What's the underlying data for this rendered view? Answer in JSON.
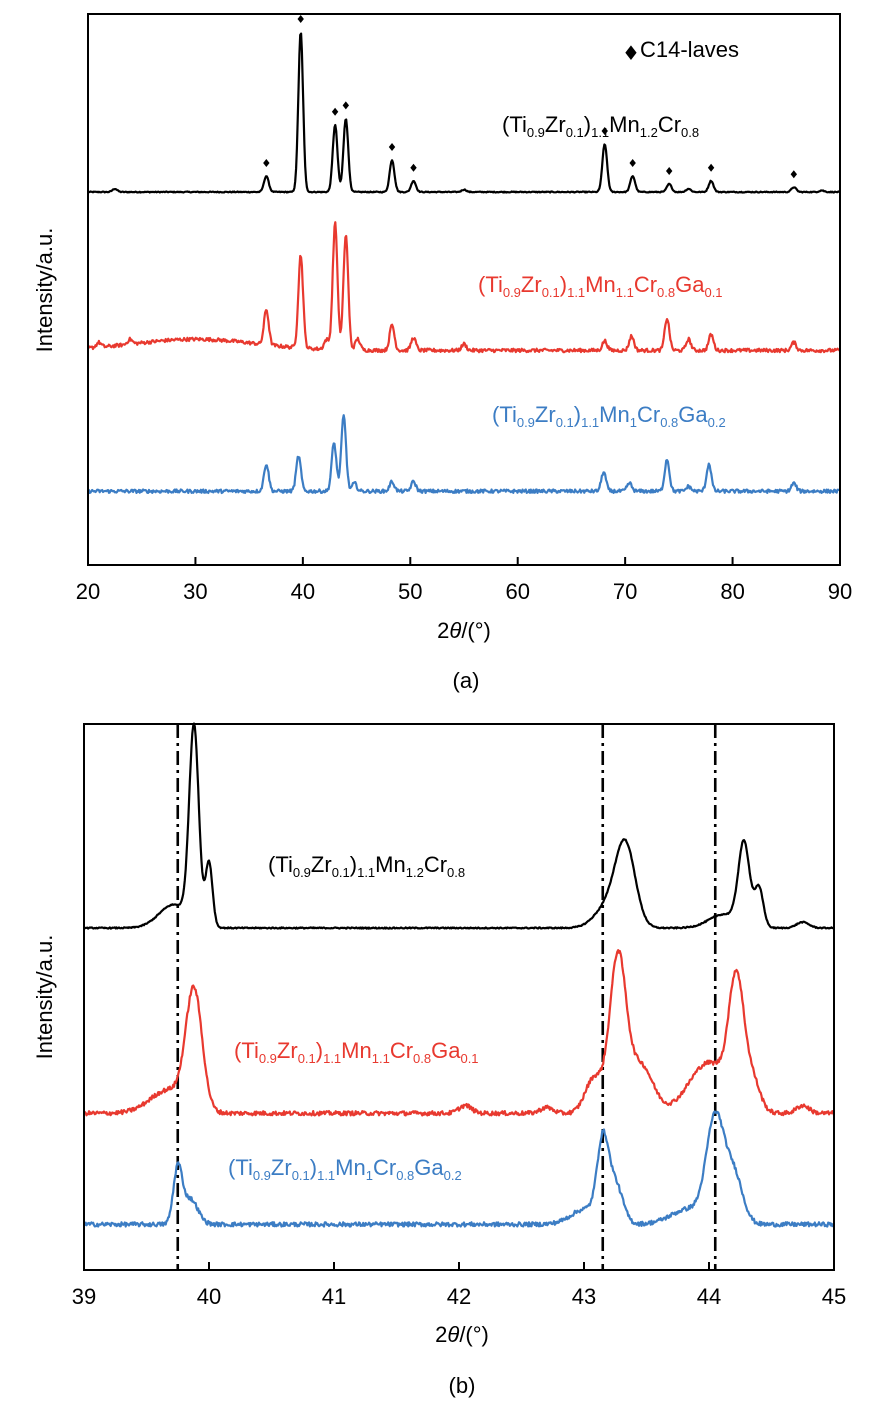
{
  "chart_data": [
    {
      "panel": "a",
      "type": "line",
      "caption": "(a)",
      "xlabel_italic": "θ",
      "xlabel_prefix": "2",
      "xlabel_suffix": "/(°)",
      "ylabel": "Intensity/a.u.",
      "xlim": [
        20,
        90
      ],
      "xticks": [
        "20",
        "30",
        "40",
        "50",
        "60",
        "70",
        "80",
        "90"
      ],
      "legend": {
        "marker": "♦",
        "text": "C14-laves",
        "position": "top-right"
      },
      "marker_peaks": [
        36.6,
        39.8,
        43.0,
        44.0,
        48.3,
        50.3,
        68.1,
        70.7,
        74.1,
        78.0,
        85.7
      ],
      "series": [
        {
          "name": "(Ti0.9Zr0.1)1.1Mn1.2Cr0.8",
          "label": [
            {
              "t": "(Ti",
              "s": "n"
            },
            {
              "t": "0.9",
              "s": "sub"
            },
            {
              "t": "Zr",
              "s": "n"
            },
            {
              "t": "0.1",
              "s": "sub"
            },
            {
              "t": ")",
              "s": "n"
            },
            {
              "t": "1.1",
              "s": "sub"
            },
            {
              "t": "Mn",
              "s": "n"
            },
            {
              "t": "1.2",
              "s": "sub"
            },
            {
              "t": "Cr",
              "s": "n"
            },
            {
              "t": "0.8",
              "s": "sub"
            }
          ],
          "color": "#000000",
          "baseline": 0.0,
          "peaks": [
            [
              22.5,
              0.02
            ],
            [
              36.6,
              0.1
            ],
            [
              39.8,
              1.0
            ],
            [
              43.0,
              0.42
            ],
            [
              44.0,
              0.46
            ],
            [
              48.3,
              0.2
            ],
            [
              50.3,
              0.07
            ],
            [
              55.0,
              0.015
            ],
            [
              68.1,
              0.3
            ],
            [
              70.7,
              0.1
            ],
            [
              74.1,
              0.05
            ],
            [
              75.9,
              0.02
            ],
            [
              78.0,
              0.07
            ],
            [
              85.7,
              0.03
            ],
            [
              88.3,
              0.01
            ]
          ]
        },
        {
          "name": "(Ti0.9Zr0.1)1.1Mn1.1Cr0.8Ga0.1",
          "label": [
            {
              "t": "(Ti",
              "s": "n"
            },
            {
              "t": "0.9",
              "s": "sub"
            },
            {
              "t": "Zr",
              "s": "n"
            },
            {
              "t": "0.1",
              "s": "sub"
            },
            {
              "t": ")",
              "s": "n"
            },
            {
              "t": "1.1",
              "s": "sub"
            },
            {
              "t": "Mn",
              "s": "n"
            },
            {
              "t": "1.1",
              "s": "sub"
            },
            {
              "t": "Cr",
              "s": "n"
            },
            {
              "t": "0.8",
              "s": "sub"
            },
            {
              "t": "Ga",
              "s": "n"
            },
            {
              "t": "0.1",
              "s": "sub"
            }
          ],
          "color": "#e8392f",
          "baseline": -0.99,
          "hump": 0.07,
          "peaks": [
            [
              21.0,
              0.03
            ],
            [
              23.9,
              0.03
            ],
            [
              36.6,
              0.22
            ],
            [
              39.8,
              0.58
            ],
            [
              42.2,
              0.06
            ],
            [
              43.0,
              0.79
            ],
            [
              44.0,
              0.72
            ],
            [
              45.1,
              0.07
            ],
            [
              48.3,
              0.16
            ],
            [
              50.3,
              0.08
            ],
            [
              55.0,
              0.04
            ],
            [
              68.1,
              0.06
            ],
            [
              70.6,
              0.09
            ],
            [
              73.9,
              0.2
            ],
            [
              75.9,
              0.07
            ],
            [
              78.0,
              0.1
            ],
            [
              85.7,
              0.05
            ]
          ]
        },
        {
          "name": "(Ti0.9Zr0.1)1.1Mn1Cr0.8Ga0.2",
          "label": [
            {
              "t": "(Ti",
              "s": "n"
            },
            {
              "t": "0.9",
              "s": "sub"
            },
            {
              "t": "Zr",
              "s": "n"
            },
            {
              "t": "0.1",
              "s": "sub"
            },
            {
              "t": ")",
              "s": "n"
            },
            {
              "t": "1.1",
              "s": "sub"
            },
            {
              "t": "Mn",
              "s": "n"
            },
            {
              "t": "1",
              "s": "sub"
            },
            {
              "t": "Cr",
              "s": "n"
            },
            {
              "t": "0.8",
              "s": "sub"
            },
            {
              "t": "Ga",
              "s": "n"
            },
            {
              "t": "0.2",
              "s": "sub"
            }
          ],
          "color": "#3c7dc4",
          "baseline": -1.87,
          "peaks": [
            [
              36.6,
              0.17
            ],
            [
              39.6,
              0.22
            ],
            [
              42.9,
              0.3
            ],
            [
              43.8,
              0.47
            ],
            [
              44.8,
              0.05
            ],
            [
              48.3,
              0.06
            ],
            [
              50.3,
              0.06
            ],
            [
              68.0,
              0.12
            ],
            [
              70.4,
              0.05
            ],
            [
              73.9,
              0.2
            ],
            [
              75.9,
              0.03
            ],
            [
              77.8,
              0.17
            ],
            [
              85.7,
              0.05
            ]
          ]
        }
      ]
    },
    {
      "panel": "b",
      "type": "line",
      "caption": "(b)",
      "xlabel_italic": "θ",
      "xlabel_prefix": "2",
      "xlabel_suffix": "/(°)",
      "ylabel": "Intensity/a.u.",
      "xlim": [
        39,
        45
      ],
      "xticks": [
        "39",
        "40",
        "41",
        "42",
        "43",
        "44",
        "45"
      ],
      "reference_lines": [
        39.75,
        43.15,
        44.05
      ],
      "series": [
        {
          "name": "(Ti0.9Zr0.1)1.1Mn1.2Cr0.8",
          "color": "#000000",
          "baseline": 0.0,
          "peaks": [
            [
              39.88,
              1.0,
              0.038
            ],
            [
              40.0,
              0.33,
              0.028
            ],
            [
              39.72,
              0.12,
              0.12
            ],
            [
              43.33,
              0.42,
              0.08
            ],
            [
              43.18,
              0.1,
              0.1
            ],
            [
              44.28,
              0.42,
              0.045
            ],
            [
              44.4,
              0.2,
              0.035
            ],
            [
              44.12,
              0.07,
              0.12
            ],
            [
              44.75,
              0.03,
              0.05
            ]
          ]
        },
        {
          "name": "(Ti0.9Zr0.1)1.1Mn1.1Cr0.8Ga0.1",
          "color": "#e8392f",
          "baseline": -0.95,
          "peaks": [
            [
              39.88,
              0.6,
              0.065
            ],
            [
              39.68,
              0.12,
              0.15
            ],
            [
              42.05,
              0.04,
              0.05
            ],
            [
              42.7,
              0.03,
              0.05
            ],
            [
              43.08,
              0.18,
              0.07
            ],
            [
              43.27,
              0.78,
              0.065
            ],
            [
              43.45,
              0.25,
              0.1
            ],
            [
              44.0,
              0.26,
              0.16
            ],
            [
              44.22,
              0.62,
              0.06
            ],
            [
              44.35,
              0.15,
              0.06
            ],
            [
              44.75,
              0.04,
              0.05
            ]
          ]
        },
        {
          "name": "(Ti0.9Zr0.1)1.1Mn1Cr0.8Ga0.2",
          "color": "#3c7dc4",
          "baseline": -1.52,
          "peaks": [
            [
              39.75,
              0.28,
              0.035
            ],
            [
              39.85,
              0.13,
              0.06
            ],
            [
              43.15,
              0.38,
              0.045
            ],
            [
              43.25,
              0.2,
              0.06
            ],
            [
              43.02,
              0.08,
              0.12
            ],
            [
              44.05,
              0.52,
              0.07
            ],
            [
              44.2,
              0.25,
              0.07
            ],
            [
              43.85,
              0.08,
              0.15
            ]
          ]
        }
      ]
    }
  ]
}
